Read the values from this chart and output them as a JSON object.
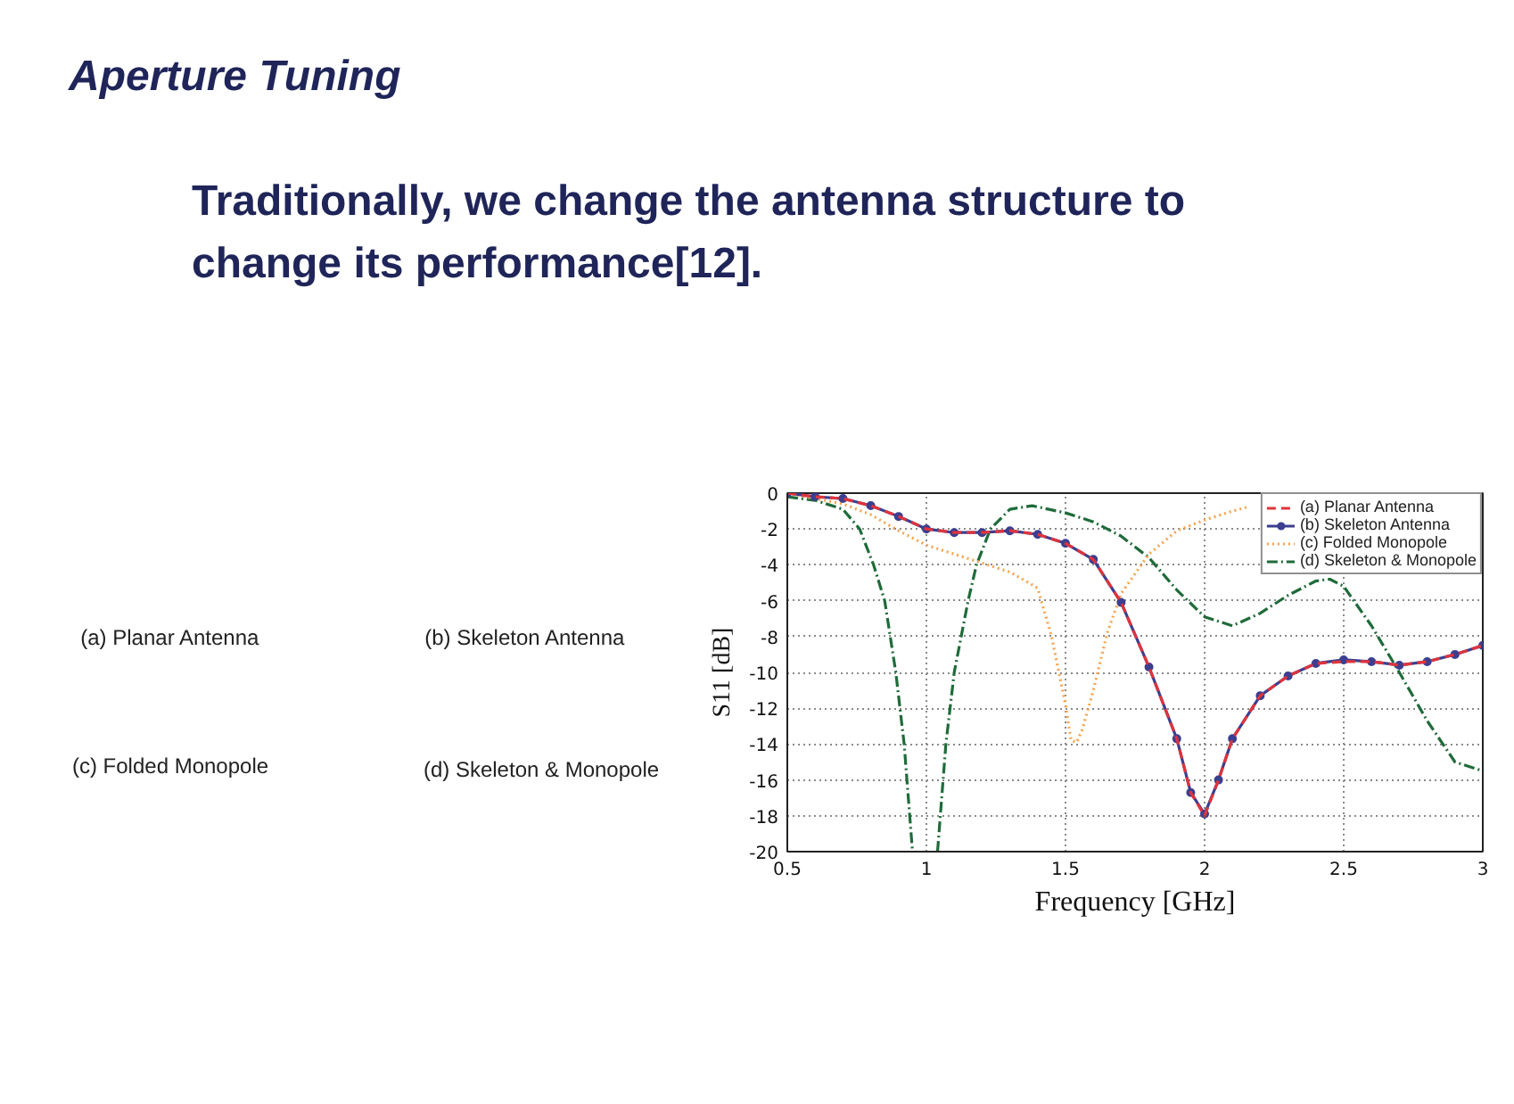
{
  "chart_data": {
    "type": "line",
    "title": "Aperture Tuning",
    "subtitle": "Traditionally, we change the antenna structure to change its performance[12].",
    "xlabel": "Frequency [GHz]",
    "ylabel": "S11 [dB]",
    "xlim": [
      0.5,
      3
    ],
    "ylim": [
      -20,
      0
    ],
    "xticks": [
      0.5,
      1,
      1.5,
      2,
      2.5,
      3
    ],
    "yticks": [
      0,
      -2,
      -4,
      -6,
      -8,
      -10,
      -12,
      -14,
      -16,
      -18,
      -20
    ],
    "grid": true,
    "legend": "top right",
    "annotations": [
      "(a) Planar Antenna",
      "(b) Skeleton Antenna",
      "(c) Folded Monopole",
      "(d) Skeleton & Monopole"
    ],
    "series": [
      {
        "name": "(a) Planar Antenna",
        "color": "#e0343c",
        "line_style": "dashed",
        "x": [
          0.5,
          0.6,
          0.7,
          0.8,
          0.9,
          1,
          1.1,
          1.2,
          1.3,
          1.4,
          1.5,
          1.6,
          1.7,
          1.8,
          1.9,
          1.95,
          2,
          2.05,
          2.1,
          2.2,
          2.3,
          2.4,
          2.5,
          2.6,
          2.7,
          2.8,
          2.9,
          3
        ],
        "values": [
          0,
          -0.2,
          -0.3,
          -0.7,
          -1.3,
          -2,
          -2.2,
          -2.2,
          -2.1,
          -2.3,
          -2.8,
          -3.7,
          -6.1,
          -9.7,
          -13.7,
          -16.7,
          -18,
          -16,
          -13.7,
          -11.3,
          -10.2,
          -9.5,
          -9.4,
          -9.4,
          -9.6,
          -9.4,
          -9,
          -8.5
        ]
      },
      {
        "name": "(b) Skeleton Antenna",
        "color": "#3c3f8f",
        "line_style": "solid",
        "marker": "circle",
        "x": [
          0.5,
          0.6,
          0.7,
          0.8,
          0.9,
          1,
          1.1,
          1.2,
          1.3,
          1.4,
          1.5,
          1.6,
          1.7,
          1.8,
          1.9,
          1.95,
          2,
          2.05,
          2.1,
          2.2,
          2.3,
          2.4,
          2.5,
          2.6,
          2.7,
          2.8,
          2.9,
          3
        ],
        "values": [
          0,
          -0.2,
          -0.3,
          -0.7,
          -1.3,
          -2,
          -2.2,
          -2.2,
          -2.1,
          -2.3,
          -2.8,
          -3.7,
          -6.1,
          -9.7,
          -13.7,
          -16.7,
          -17.9,
          -16,
          -13.7,
          -11.3,
          -10.2,
          -9.5,
          -9.3,
          -9.4,
          -9.6,
          -9.4,
          -9,
          -8.5
        ]
      },
      {
        "name": "(c) Folded Monopole",
        "color": "#f5a34f",
        "line_style": "dotted",
        "x": [
          0.5,
          0.6,
          0.7,
          0.8,
          0.9,
          1,
          1.1,
          1.2,
          1.3,
          1.4,
          1.45,
          1.5,
          1.52,
          1.54,
          1.56,
          1.6,
          1.65,
          1.7,
          1.8,
          1.9,
          2,
          2.1,
          2.15
        ],
        "values": [
          0,
          -0.3,
          -0.6,
          -1.2,
          -2.1,
          -2.9,
          -3.4,
          -3.9,
          -4.4,
          -5.3,
          -8,
          -11.8,
          -13.8,
          -13.9,
          -13.2,
          -11,
          -7.8,
          -5.6,
          -3.4,
          -2.1,
          -1.5,
          -1,
          -0.8
        ]
      },
      {
        "name": "(d) Skeleton & Monopole",
        "color": "#1f6b3a",
        "line_style": "dashdot",
        "x": [
          0.5,
          0.6,
          0.7,
          0.76,
          0.81,
          0.85,
          0.89,
          0.92,
          0.94,
          0.95,
          1,
          1.04,
          1.05,
          1.07,
          1.1,
          1.15,
          1.18,
          1.23,
          1.3,
          1.38,
          1.5,
          1.6,
          1.7,
          1.8,
          1.9,
          2,
          2.1,
          2.2,
          2.3,
          2.4,
          2.45,
          2.5,
          2.6,
          2.7,
          2.8,
          2.9,
          3
        ],
        "values": [
          -0.2,
          -0.4,
          -0.9,
          -2,
          -4,
          -6,
          -10,
          -14,
          -18,
          -20,
          null,
          -20,
          -18,
          -14,
          -10,
          -6,
          -4,
          -2,
          -0.9,
          -0.7,
          -1.1,
          -1.6,
          -2.4,
          -3.6,
          -5.4,
          -6.9,
          -7.4,
          -6.7,
          -5.7,
          -4.9,
          -4.8,
          -5.2,
          -7.4,
          -10,
          -12.7,
          -15,
          -15.5
        ]
      }
    ]
  }
}
